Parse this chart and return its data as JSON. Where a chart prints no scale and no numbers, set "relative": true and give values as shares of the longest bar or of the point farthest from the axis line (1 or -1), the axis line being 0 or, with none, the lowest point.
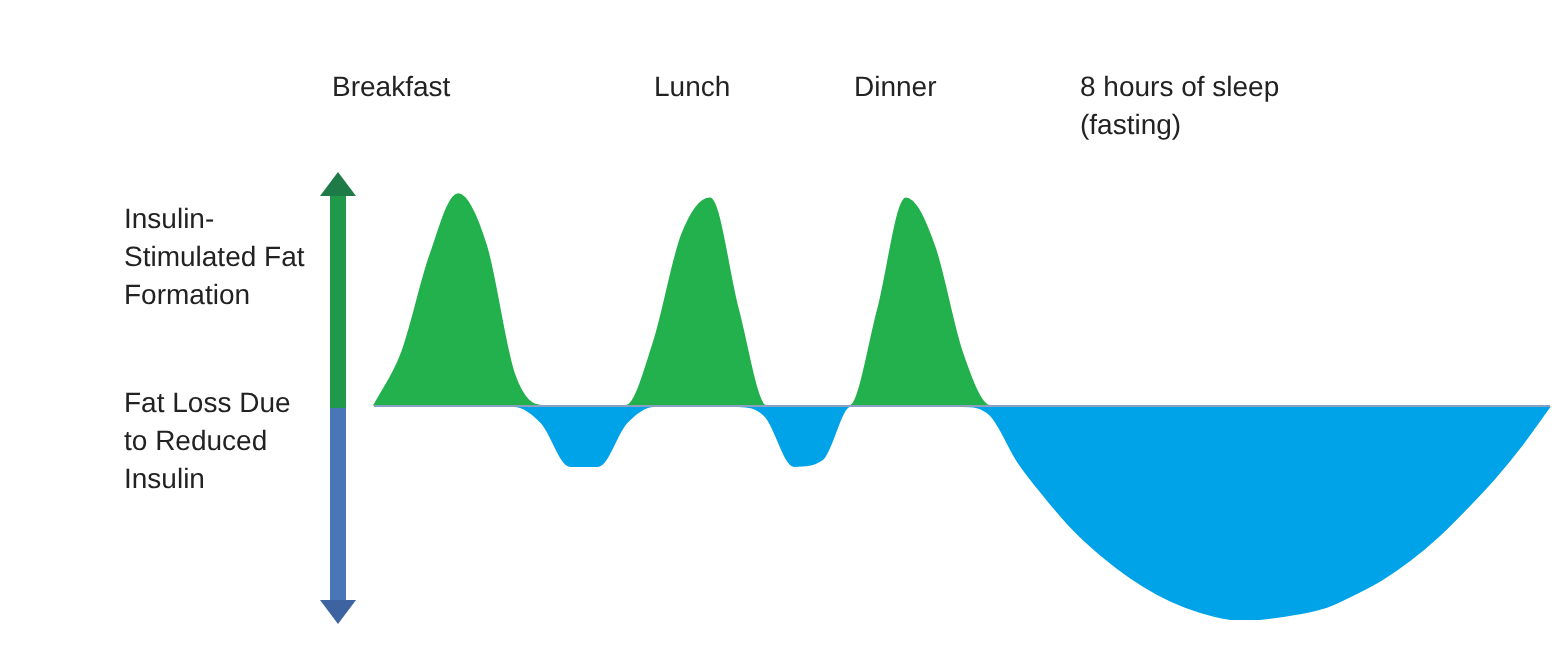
{
  "chart_data": {
    "type": "area",
    "relative": true,
    "categories": [
      null,
      null,
      null,
      null,
      null,
      null,
      null,
      null,
      null,
      null,
      null,
      null,
      null,
      null,
      null,
      null,
      null,
      null,
      null,
      null,
      null,
      null,
      null,
      null,
      null,
      null,
      null,
      null,
      null,
      null,
      null,
      null,
      null,
      null,
      null,
      null,
      null,
      null,
      null,
      null,
      null,
      null,
      null
    ],
    "series": [
      {
        "color": "#22b14c",
        "values": [
          0,
          0.25,
          0.7,
          0.99,
          0.75,
          0.15,
          0,
          0,
          0,
          0,
          0.3,
          0.8,
          0.97,
          0.45,
          0,
          0,
          0,
          0,
          0.45,
          0.97,
          0.75,
          0.25,
          0,
          0,
          0,
          0,
          0,
          0,
          0,
          0,
          0,
          0,
          0,
          0,
          0,
          0,
          0,
          0,
          0,
          0,
          0,
          0,
          0
        ]
      },
      {
        "color": "#00a2e8",
        "values": [
          0,
          0,
          0,
          0,
          0,
          0,
          -0.08,
          -0.28,
          -0.28,
          -0.08,
          0,
          0,
          0,
          0,
          -0.05,
          -0.28,
          -0.25,
          0,
          0,
          0,
          0,
          0,
          -0.04,
          -0.26,
          -0.43,
          -0.58,
          -0.7,
          -0.8,
          -0.88,
          -0.94,
          -0.98,
          -1,
          -0.99,
          -0.97,
          -0.94,
          -0.88,
          -0.81,
          -0.72,
          -0.61,
          -0.48,
          -0.34,
          -0.18,
          0
        ]
      }
    ],
    "annotations": [
      "Breakfast",
      "Lunch",
      "Dinner",
      "8 hours of sleep (fasting)",
      "Insulin-Stimulated Fat Formation",
      "Fat Loss Due to Reduced Insulin"
    ]
  }
}
